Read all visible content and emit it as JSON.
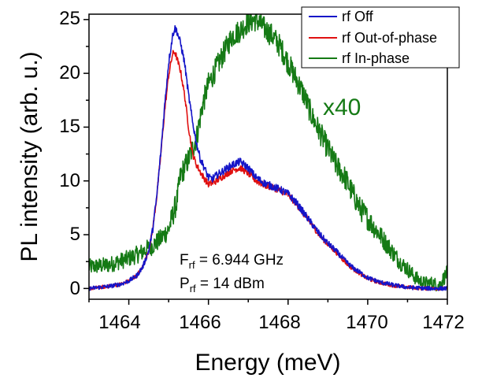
{
  "chart_data": {
    "type": "line",
    "title": "",
    "xlabel": "Energy (meV)",
    "ylabel": "PL intensity (arb. u.)",
    "xlim": [
      1463,
      1472
    ],
    "ylim": [
      -1,
      25.5
    ],
    "xticks": [
      1464,
      1466,
      1468,
      1470,
      1472
    ],
    "yticks": [
      0,
      5,
      10,
      15,
      20,
      25
    ],
    "xtick_labels": [
      "1464",
      "1466",
      "1468",
      "1470",
      "1472"
    ],
    "ytick_labels": [
      "0",
      "5",
      "10",
      "15",
      "20",
      "25"
    ],
    "legend_position": "top-right",
    "series": [
      {
        "name": "rf Off",
        "color": "#1515c8",
        "noise": 0.35,
        "x": [
          1463.0,
          1463.5,
          1463.8,
          1464.0,
          1464.2,
          1464.35,
          1464.5,
          1464.6,
          1464.7,
          1464.8,
          1464.9,
          1465.0,
          1465.1,
          1465.15,
          1465.2,
          1465.3,
          1465.4,
          1465.5,
          1465.6,
          1465.7,
          1465.8,
          1465.9,
          1466.0,
          1466.1,
          1466.2,
          1466.4,
          1466.6,
          1466.8,
          1467.0,
          1467.2,
          1467.4,
          1467.6,
          1467.8,
          1468.0,
          1468.2,
          1468.4,
          1468.6,
          1468.8,
          1469.0,
          1469.2,
          1469.4,
          1469.6,
          1469.8,
          1470.0,
          1470.3,
          1470.6,
          1471.0,
          1471.5,
          1472.0
        ],
        "y": [
          0.0,
          0.2,
          0.4,
          0.7,
          1.2,
          2.0,
          3.5,
          5.5,
          8.5,
          12.5,
          17.0,
          21.0,
          23.5,
          24.2,
          24.0,
          22.8,
          21.0,
          18.0,
          15.5,
          13.5,
          12.0,
          11.2,
          10.3,
          10.2,
          10.5,
          11.0,
          11.5,
          11.8,
          11.2,
          10.3,
          9.8,
          9.5,
          9.2,
          8.8,
          8.0,
          7.0,
          6.0,
          5.0,
          4.2,
          3.5,
          2.7,
          2.0,
          1.5,
          1.0,
          0.6,
          0.35,
          0.1,
          0.0,
          0.0
        ]
      },
      {
        "name": "rf Out-of-phase",
        "color": "#e01010",
        "noise": 0.3,
        "x": [
          1463.0,
          1463.5,
          1463.8,
          1464.0,
          1464.2,
          1464.35,
          1464.5,
          1464.6,
          1464.7,
          1464.8,
          1464.9,
          1465.0,
          1465.1,
          1465.15,
          1465.2,
          1465.3,
          1465.4,
          1465.5,
          1465.6,
          1465.7,
          1465.8,
          1465.9,
          1466.0,
          1466.1,
          1466.2,
          1466.4,
          1466.6,
          1466.8,
          1467.0,
          1467.2,
          1467.4,
          1467.6,
          1467.8,
          1468.0,
          1468.2,
          1468.4,
          1468.6,
          1468.8,
          1469.0,
          1469.2,
          1469.4,
          1469.6,
          1469.8,
          1470.0,
          1470.3,
          1470.6,
          1471.0,
          1471.5,
          1472.0
        ],
        "y": [
          0.0,
          0.2,
          0.4,
          0.7,
          1.2,
          2.0,
          3.5,
          5.5,
          8.5,
          12.3,
          16.5,
          19.8,
          21.8,
          22.0,
          21.5,
          20.2,
          18.0,
          15.0,
          12.5,
          11.5,
          10.8,
          10.2,
          9.7,
          9.8,
          10.0,
          10.5,
          11.0,
          11.2,
          10.7,
          10.0,
          9.6,
          9.4,
          9.1,
          8.7,
          7.9,
          6.9,
          5.9,
          4.9,
          4.1,
          3.4,
          2.6,
          1.9,
          1.4,
          0.9,
          0.55,
          0.3,
          0.1,
          0.0,
          0.0
        ]
      },
      {
        "name": "rf In-phase",
        "color": "#157a15",
        "noise": 1.1,
        "x": [
          1463.0,
          1463.5,
          1464.0,
          1464.3,
          1464.6,
          1464.8,
          1465.0,
          1465.2,
          1465.3,
          1465.5,
          1465.7,
          1465.85,
          1466.0,
          1466.2,
          1466.4,
          1466.6,
          1466.8,
          1467.0,
          1467.2,
          1467.4,
          1467.6,
          1467.8,
          1468.0,
          1468.2,
          1468.4,
          1468.6,
          1468.8,
          1469.0,
          1469.2,
          1469.4,
          1469.6,
          1469.8,
          1470.0,
          1470.2,
          1470.4,
          1470.6,
          1470.8,
          1471.0,
          1471.2,
          1471.4,
          1471.6,
          1471.8,
          1472.0
        ],
        "y": [
          2.0,
          2.2,
          2.8,
          3.3,
          4.0,
          4.6,
          5.5,
          8.0,
          10.5,
          12.0,
          14.0,
          17.0,
          19.0,
          20.5,
          22.0,
          23.5,
          24.0,
          24.8,
          25.0,
          24.2,
          23.5,
          22.5,
          21.0,
          19.5,
          18.0,
          16.0,
          14.5,
          13.0,
          11.5,
          10.5,
          9.0,
          7.5,
          6.5,
          5.5,
          4.5,
          3.5,
          2.5,
          1.8,
          1.0,
          0.5,
          0.5,
          0.3,
          1.5
        ]
      }
    ],
    "annotations": {
      "scale_note": "x40",
      "scale_note_color": "#157a15",
      "f_main": "F",
      "f_sub": "rf",
      "f_value": " = 6.944 GHz",
      "p_main": "P",
      "p_sub": "rf",
      "p_value": " = 14 dBm"
    }
  }
}
